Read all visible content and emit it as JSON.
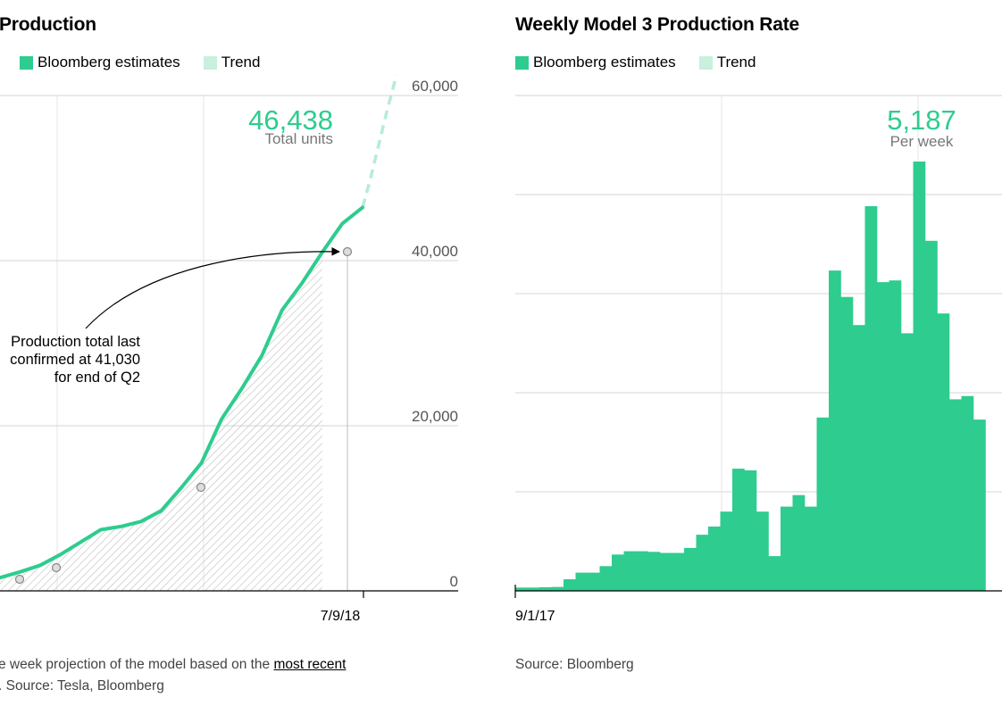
{
  "colors": {
    "estimate": "#2ecc8f",
    "trend": "#c8f0dd",
    "grid": "#d4d4d4",
    "hatch": "#bdbdbd"
  },
  "left": {
    "title": "Production",
    "legend": {
      "estimates": "Bloomberg estimates",
      "trend": "Trend"
    },
    "callout": {
      "value": "46,438",
      "label": "Total units"
    },
    "annotation": [
      "Production total last",
      "confirmed at 41,030",
      "for end of Q2"
    ],
    "note_prefix": "e week projection of the model based on the ",
    "note_link": "most recent",
    "note_line2": ". Source: Tesla, Bloomberg"
  },
  "right": {
    "title": "Weekly Model 3 Production Rate",
    "legend": {
      "estimates": "Bloomberg estimates",
      "trend": "Trend"
    },
    "callout": {
      "value": "5,187",
      "label": "Per week"
    },
    "source": "Source: Bloomberg"
  },
  "chart_data": [
    {
      "type": "line",
      "title": "Production",
      "y_axis": {
        "ticks": [
          0,
          20000,
          40000,
          60000
        ],
        "tick_labels": [
          "0",
          "20,000",
          "40,000",
          "60,000"
        ],
        "range": [
          0,
          60000
        ],
        "position": "right"
      },
      "x_tick_labels": [
        "7/9/18"
      ],
      "grid": true,
      "legend_position": "top-left",
      "series": [
        {
          "name": "Bloomberg estimates",
          "values": [
            1600,
            2300,
            3100,
            4400,
            5900,
            7400,
            7800,
            8400,
            9700,
            12500,
            15500,
            20800,
            24500,
            28500,
            34000,
            37300,
            41030,
            44500,
            46438
          ]
        },
        {
          "name": "Trend",
          "values": [
            46438,
            50000,
            54000,
            58000,
            62500
          ]
        }
      ],
      "highlighted_points": [
        1600,
        2800,
        12500,
        41030
      ]
    },
    {
      "type": "bar",
      "title": "Weekly Model 3 Production Rate",
      "x_tick_labels": [
        "9/1/17"
      ],
      "grid": true,
      "legend_position": "top-left",
      "series": [
        {
          "name": "Bloomberg estimates",
          "values": [
            100,
            100,
            110,
            120,
            350,
            550,
            550,
            750,
            1100,
            1200,
            1200,
            1180,
            1150,
            1150,
            1300,
            1700,
            1950,
            2400,
            3700,
            3650,
            2400,
            1050,
            2550,
            2900,
            2550,
            5250,
            9700,
            8900,
            8050,
            11650,
            9350,
            9400,
            7800,
            13000,
            10600,
            8400,
            5800,
            5900,
            5187
          ]
        }
      ]
    }
  ]
}
